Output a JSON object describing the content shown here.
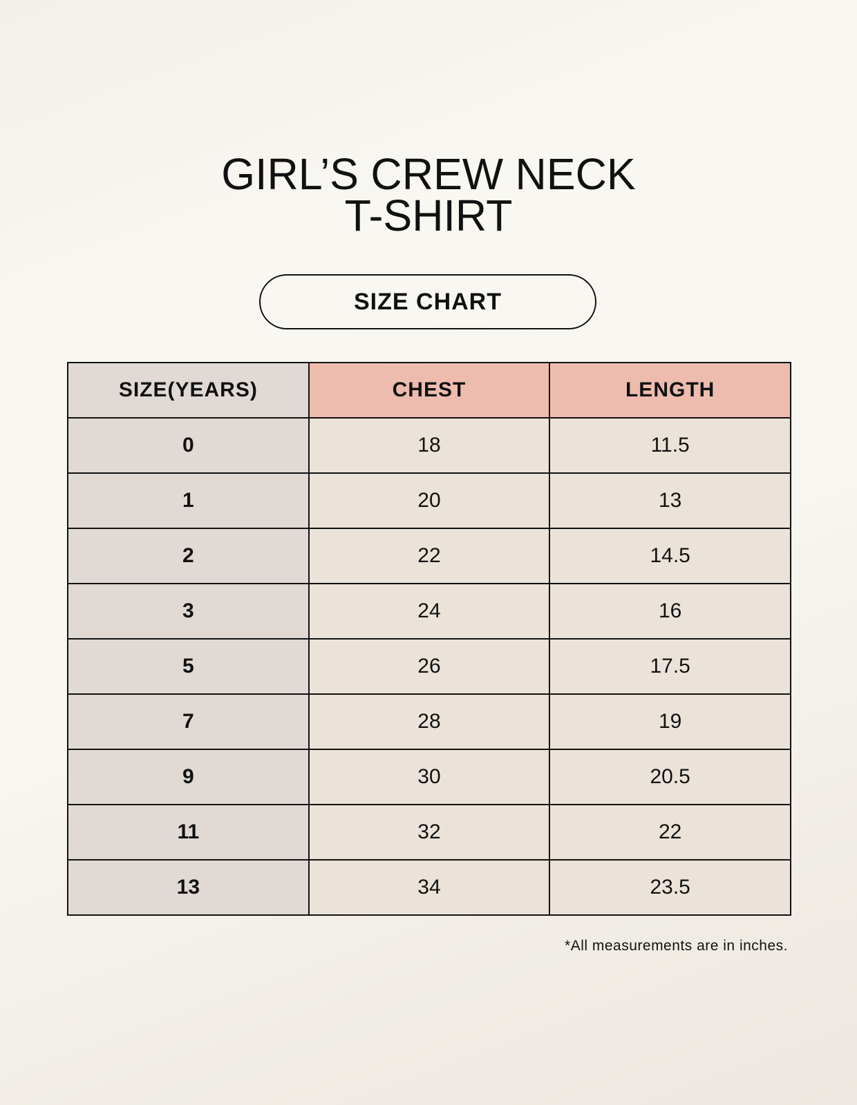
{
  "title_lines": [
    "GIRL’S CREW NECK",
    "T-SHIRT"
  ],
  "badge": "SIZE CHART",
  "table": {
    "headers": [
      "SIZE(YEARS)",
      "CHEST",
      "LENGTH"
    ],
    "rows": [
      [
        "0",
        "18",
        "11.5"
      ],
      [
        "1",
        "20",
        "13"
      ],
      [
        "2",
        "22",
        "14.5"
      ],
      [
        "3",
        "24",
        "16"
      ],
      [
        "5",
        "26",
        "17.5"
      ],
      [
        "7",
        "28",
        "19"
      ],
      [
        "9",
        "30",
        "20.5"
      ],
      [
        "11",
        "32",
        "22"
      ],
      [
        "13",
        "34",
        "23.5"
      ]
    ]
  },
  "footnote": "*All measurements are in inches.",
  "colors": {
    "size_column": "#e0d9d4",
    "header_accent": "#edbcaf",
    "cell": "#ebe3d9"
  }
}
